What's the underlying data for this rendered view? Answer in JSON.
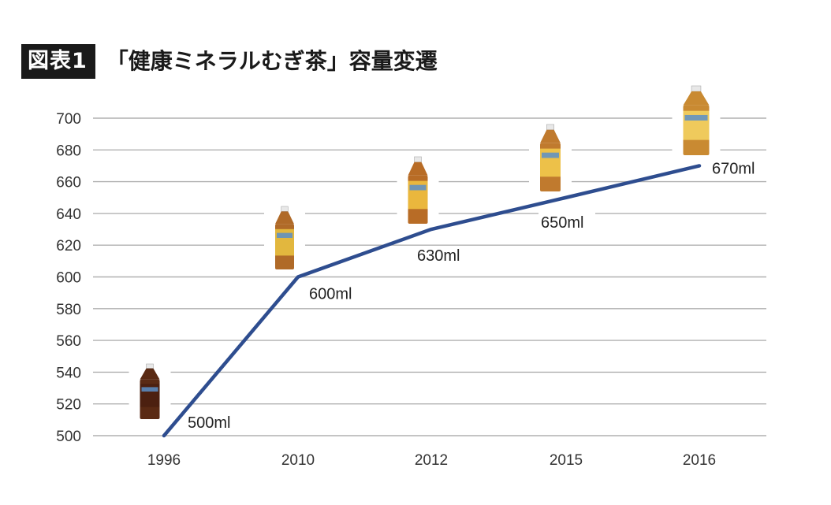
{
  "title": {
    "badge": "図表1",
    "text": "「健康ミネラルむぎ茶」容量変遷"
  },
  "colors": {
    "line": "#2e4d8f",
    "grid": "#b0b0b0",
    "badge_bg": "#1a1a1a"
  },
  "chart_data": {
    "type": "line",
    "categories": [
      "1996",
      "2010",
      "2012",
      "2015",
      "2016"
    ],
    "series": [
      {
        "values": [
          500,
          600,
          630,
          650,
          670
        ]
      }
    ],
    "data_labels": [
      "500ml",
      "600ml",
      "630ml",
      "650ml",
      "670ml"
    ],
    "yticks": [
      500,
      520,
      540,
      560,
      580,
      600,
      620,
      640,
      660,
      680,
      700
    ],
    "ylim": [
      500,
      700
    ],
    "grid": true,
    "legend": false,
    "images": [
      "bottle",
      "bottle",
      "bottle",
      "bottle",
      "bottle"
    ]
  }
}
